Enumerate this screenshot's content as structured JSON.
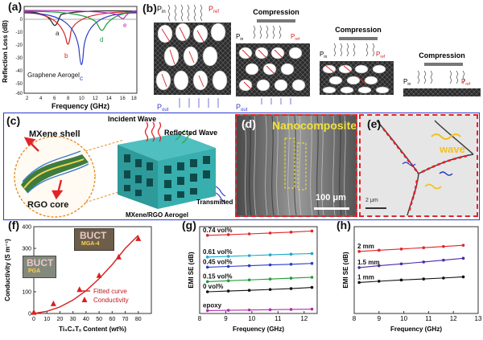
{
  "panel_a": {
    "label": "(a)",
    "ylabel": "Reflection Loss (dB)",
    "xlabel": "Frequency (GHz)",
    "sample_label": "Graphene Aerogel",
    "xticks": [
      "2",
      "4",
      "6",
      "8",
      "10",
      "12",
      "14",
      "16",
      "18"
    ],
    "yticks": [
      "0",
      "-10",
      "-20",
      "-30",
      "-40",
      "-50",
      "-60"
    ],
    "curve_labels": [
      "a",
      "b",
      "c",
      "d",
      "e"
    ],
    "colors": [
      "#222222",
      "#d62020",
      "#2a3cc6",
      "#1f9a3a",
      "#b02cb0"
    ]
  },
  "panel_b": {
    "label": "(b)",
    "compression_labels": [
      "Compression",
      "Compression",
      "Compression"
    ],
    "p_in": "P",
    "p_in_sub": "in",
    "p_ref": "P",
    "p_ref_sub": "ref",
    "p_out": "P",
    "p_out_sub": "out"
  },
  "panel_c": {
    "label": "(c)",
    "mxene_shell": "MXene shell",
    "rgo_core": "RGO core",
    "incident_wave": "Incident Wave",
    "reflected_wave": "Reflected Wave",
    "transmitted_wave": "Transmitted Wave",
    "aerogel_label": "MXene/RGO Aerogel"
  },
  "panel_d": {
    "label": "(d)",
    "title": "Nanocomposite",
    "scale": "100 μm"
  },
  "panel_e": {
    "label": "(e)",
    "wave": "wave",
    "scale": "2 μm"
  },
  "chart_data": [
    {
      "panel": "(f)",
      "type": "scatter",
      "ylabel": "Conductivity (S m⁻¹)",
      "xlabel": "Ti₃C₂Tₓ Content (wt%)",
      "xlim": [
        0,
        90
      ],
      "ylim": [
        0,
        400
      ],
      "xticks": [
        "0",
        "10",
        "20",
        "30",
        "40",
        "50",
        "60",
        "70",
        "80"
      ],
      "yticks": [
        "0",
        "100",
        "200",
        "300",
        "400"
      ],
      "x": [
        0,
        15,
        35,
        50,
        65,
        80
      ],
      "y": [
        5,
        45,
        110,
        175,
        260,
        345
      ],
      "fit_x": [
        0,
        10,
        20,
        30,
        40,
        50,
        60,
        70,
        80
      ],
      "fit_y": [
        0,
        10,
        30,
        62,
        105,
        160,
        225,
        300,
        360
      ],
      "legend": [
        "Fitted curve",
        "Conductivity"
      ],
      "photo_labels": [
        {
          "text": "BUCT",
          "sub": "MGA-4"
        },
        {
          "text": "BUCT",
          "sub": "PGA"
        }
      ],
      "colors": {
        "fit": "#d62020",
        "points": "#d62020"
      }
    },
    {
      "panel": "(g)",
      "type": "line",
      "ylabel": "EMI SE (dB)",
      "xlabel": "Frequency (GHz)",
      "xlim": [
        8,
        12.5
      ],
      "ylim": [
        0,
        60
      ],
      "xticks": [
        "8",
        "9",
        "10",
        "11",
        "12"
      ],
      "series": [
        {
          "name": "0.74 vol%",
          "color": "#e0242a",
          "values": [
            54,
            54.5,
            55,
            55.6,
            56.2,
            57
          ]
        },
        {
          "name": "0.61 vol%",
          "color": "#1aa8c8",
          "values": [
            39,
            39.5,
            40,
            40.5,
            41,
            41.4
          ]
        },
        {
          "name": "0.45 vol%",
          "color": "#2a3cc6",
          "values": [
            32,
            32.5,
            33,
            33.6,
            34,
            34.6
          ]
        },
        {
          "name": "0.15 vol%",
          "color": "#1f9a3a",
          "values": [
            22,
            22.6,
            23.2,
            23.8,
            24.4,
            25
          ]
        },
        {
          "name": "0 vol%",
          "color": "#111111",
          "values": [
            15,
            15.5,
            16,
            16.6,
            17.2,
            18
          ]
        },
        {
          "name": "epoxy",
          "color": "#b02cb0",
          "values": [
            2,
            2.2,
            2.4,
            2.6,
            2.8,
            3
          ]
        }
      ],
      "x": [
        8.3,
        9.1,
        9.9,
        10.7,
        11.5,
        12.3
      ]
    },
    {
      "panel": "(h)",
      "type": "line",
      "ylabel": "EMI SE (dB)",
      "xlabel": "Frequency (GHz)",
      "xlim": [
        8,
        13
      ],
      "ylim": [
        0,
        70
      ],
      "xticks": [
        "8",
        "9",
        "10",
        "11",
        "12",
        "13"
      ],
      "series": [
        {
          "name": "2 mm",
          "color": "#e0242a",
          "values": [
            50,
            51,
            52,
            53,
            54,
            55
          ]
        },
        {
          "name": "1.5 mm",
          "color": "#4b2aa8",
          "values": [
            37,
            38.5,
            40,
            41.5,
            43,
            44.5
          ]
        },
        {
          "name": "1 mm",
          "color": "#111111",
          "values": [
            25,
            26,
            27,
            27.8,
            28.6,
            29.5
          ]
        }
      ],
      "x": [
        8.2,
        9.0,
        9.9,
        10.8,
        11.6,
        12.4
      ]
    }
  ]
}
